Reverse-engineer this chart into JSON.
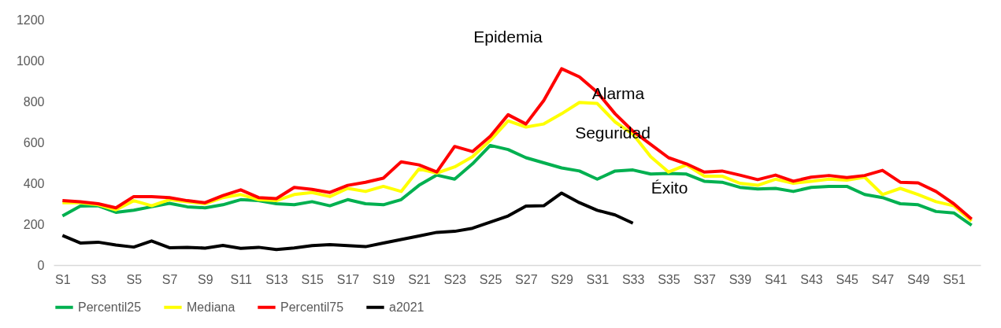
{
  "chart_data": {
    "type": "line",
    "categories": [
      "S1",
      null,
      "S3",
      null,
      "S5",
      null,
      "S7",
      null,
      "S9",
      null,
      "S11",
      null,
      "S13",
      null,
      "S15",
      null,
      "S17",
      null,
      "S19",
      null,
      "S21",
      null,
      "S23",
      null,
      "S25",
      null,
      "S27",
      null,
      "S29",
      null,
      "S31",
      null,
      "S33",
      null,
      "S35",
      null,
      "S37",
      null,
      "S39",
      null,
      "S41",
      null,
      "S43",
      null,
      "S45",
      null,
      "S47",
      null,
      "S49",
      null,
      "S51",
      null
    ],
    "series": [
      {
        "name": "Percentil25",
        "color": "#00b050",
        "values": [
          240,
          288,
          290,
          258,
          268,
          285,
          302,
          285,
          280,
          295,
          320,
          315,
          300,
          295,
          310,
          290,
          320,
          300,
          295,
          320,
          390,
          440,
          420,
          495,
          585,
          565,
          525,
          500,
          475,
          460,
          420,
          460,
          465,
          445,
          448,
          445,
          410,
          405,
          380,
          372,
          375,
          360,
          380,
          385,
          385,
          345,
          330,
          300,
          295,
          262,
          255,
          195
        ]
      },
      {
        "name": "Mediana",
        "color": "#ffff00",
        "values": [
          305,
          305,
          295,
          270,
          315,
          290,
          320,
          310,
          300,
          330,
          345,
          320,
          315,
          345,
          355,
          335,
          375,
          360,
          385,
          360,
          470,
          450,
          480,
          530,
          610,
          705,
          675,
          690,
          740,
          795,
          790,
          700,
          640,
          530,
          455,
          490,
          435,
          435,
          400,
          390,
          420,
          400,
          410,
          420,
          415,
          430,
          345,
          375,
          345,
          310,
          290,
          215
        ]
      },
      {
        "name": "Percentil75",
        "color": "#ff0000",
        "values": [
          315,
          310,
          300,
          280,
          335,
          335,
          330,
          315,
          305,
          340,
          368,
          330,
          325,
          380,
          370,
          355,
          390,
          405,
          425,
          505,
          490,
          455,
          580,
          555,
          630,
          735,
          690,
          805,
          960,
          920,
          845,
          740,
          655,
          590,
          525,
          495,
          455,
          460,
          440,
          418,
          440,
          410,
          430,
          438,
          428,
          438,
          463,
          405,
          402,
          360,
          300,
          225
        ]
      },
      {
        "name": "a2021",
        "color": "#000000",
        "values": [
          145,
          108,
          112,
          98,
          88,
          118,
          85,
          87,
          83,
          96,
          82,
          87,
          76,
          84,
          95,
          100,
          95,
          90,
          108,
          125,
          142,
          160,
          165,
          180,
          210,
          240,
          288,
          290,
          352,
          305,
          268,
          245,
          205,
          null,
          null,
          null,
          null,
          null,
          null,
          null,
          null,
          null,
          null,
          null,
          null,
          null,
          null,
          null,
          null,
          null,
          null,
          null
        ]
      }
    ],
    "ylim": [
      0,
      1200
    ],
    "yticks": [
      0,
      200,
      400,
      600,
      800,
      1000,
      1200
    ],
    "annotations": [
      "Epidemia",
      "Alarma",
      "Seguridad",
      "Éxito"
    ],
    "legend": "bottom",
    "grid": false
  }
}
